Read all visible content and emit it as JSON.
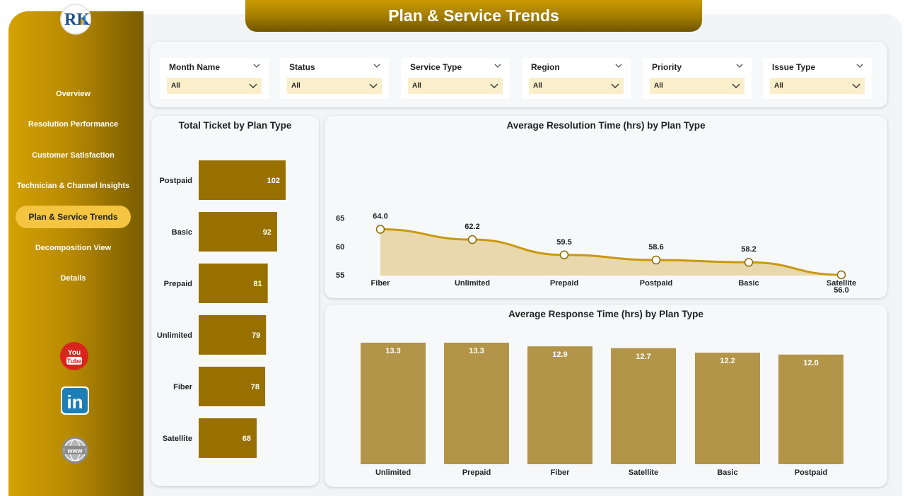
{
  "header": {
    "title": "Plan & Service Trends"
  },
  "logo": {
    "letters": "RK"
  },
  "sidebar": {
    "items": [
      {
        "label": "Overview"
      },
      {
        "label": "Resolution Performance"
      },
      {
        "label": "Customer Satisfaction"
      },
      {
        "label": "Technician & Channel Insights"
      },
      {
        "label": "Plan & Service Trends",
        "active": true
      },
      {
        "label": "Decomposition View"
      },
      {
        "label": "Details"
      }
    ],
    "social": {
      "youtube_line1": "You",
      "youtube_line2": "Tube",
      "linkedin": "in",
      "web": "www"
    }
  },
  "filters": [
    {
      "label": "Month Name",
      "value": "All"
    },
    {
      "label": "Status",
      "value": "All"
    },
    {
      "label": "Service Type",
      "value": "All"
    },
    {
      "label": "Region",
      "value": "All"
    },
    {
      "label": "Priority",
      "value": "All"
    },
    {
      "label": "Issue Type",
      "value": "All"
    }
  ],
  "colors": {
    "bar_dark": "#977000",
    "bar_light": "#b3954a",
    "line": "#c9980f",
    "area": "#e8d8ab"
  },
  "chart_data": [
    {
      "type": "bar",
      "orientation": "horizontal",
      "title": "Total Ticket by Plan Type",
      "categories": [
        "Postpaid",
        "Basic",
        "Prepaid",
        "Unlimited",
        "Fiber",
        "Satellite"
      ],
      "values": [
        102,
        92,
        81,
        79,
        78,
        68
      ],
      "xlim": [
        0,
        102
      ]
    },
    {
      "type": "area",
      "title": "Average Resolution Time (hrs) by Plan Type",
      "categories": [
        "Fiber",
        "Unlimited",
        "Prepaid",
        "Postpaid",
        "Basic",
        "Satellite"
      ],
      "values": [
        64.0,
        62.2,
        59.5,
        58.6,
        58.2,
        56.0
      ],
      "labels": [
        "64.0",
        "62.2",
        "59.5",
        "58.6",
        "58.2",
        "56.0"
      ],
      "yticks": [
        "65",
        "60",
        "55"
      ],
      "ylim": [
        55,
        65
      ]
    },
    {
      "type": "bar",
      "title": "Average Response Time (hrs) by Plan Type",
      "categories": [
        "Unlimited",
        "Prepaid",
        "Fiber",
        "Satellite",
        "Basic",
        "Postpaid"
      ],
      "values": [
        13.3,
        13.3,
        12.9,
        12.7,
        12.2,
        12.0
      ],
      "labels": [
        "13.3",
        "13.3",
        "12.9",
        "12.7",
        "12.2",
        "12.0"
      ],
      "ylim": [
        0,
        13.3
      ]
    }
  ]
}
